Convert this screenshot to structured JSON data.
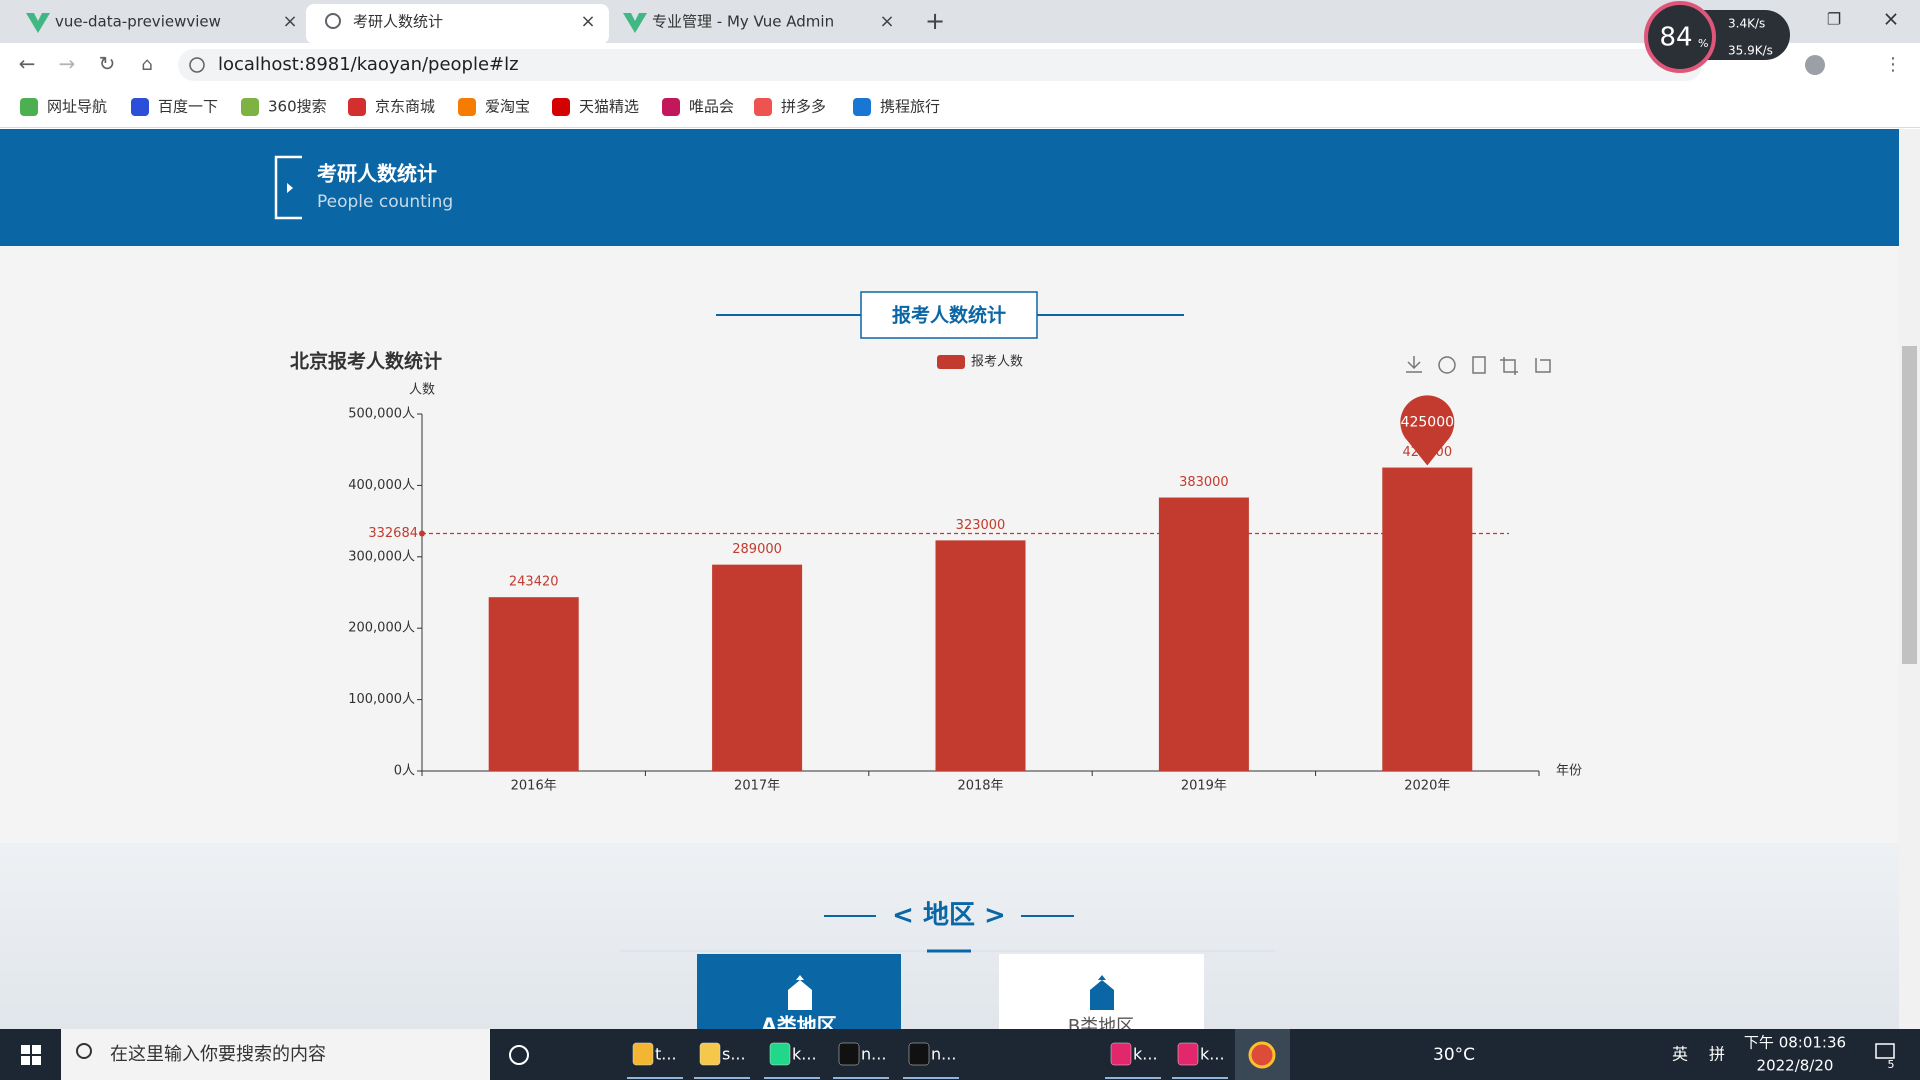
{
  "browser": {
    "tabs": [
      "vue-data-previewview",
      "考研人数统计",
      "专业管理 - My Vue Admin"
    ],
    "url": "localhost:8981/kaoyan/people#lz",
    "bookmarks": [
      "网址导航",
      "百度一下",
      "360搜索",
      "京东商城",
      "爱淘宝",
      "天猫精选",
      "唯品会",
      "拼多多",
      "携程旅行"
    ],
    "monitor": {
      "percent": "84",
      "unit": "%",
      "up": "3.4K/s",
      "down": "35.9K/s"
    }
  },
  "header": {
    "title": "考研人数统计",
    "subtitle": "People counting"
  },
  "section_title": "报考人数统计",
  "chart_data": {
    "type": "bar",
    "title": "北京报考人数统计",
    "y_axis_label": "人数",
    "x_axis_label": "年份",
    "categories": [
      "2016年",
      "2017年",
      "2018年",
      "2019年",
      "2020年"
    ],
    "series": [
      {
        "name": "报考人数",
        "color": "#c23b2e",
        "values": [
          243420,
          289000,
          323000,
          383000,
          425000
        ]
      }
    ],
    "average": 332684,
    "ylim": [
      0,
      500000
    ],
    "yticks": [
      {
        "value": 0,
        "label": "0人"
      },
      {
        "value": 100000,
        "label": "100,000人"
      },
      {
        "value": 200000,
        "label": "200,000人"
      },
      {
        "value": 300000,
        "label": "300,000人"
      },
      {
        "value": 400000,
        "label": "400,000人"
      },
      {
        "value": 500000,
        "label": "500,000人"
      }
    ],
    "grid": false,
    "legend": "top"
  },
  "region": {
    "title": "< 地区 >",
    "tabs": [
      "A类地区",
      "B类地区"
    ]
  },
  "taskbar": {
    "search": "在这里输入你要搜索的内容",
    "apps": [
      "t...",
      "s...",
      "k...",
      "n...",
      "n...",
      "k...",
      "k..."
    ],
    "weather": "30°C",
    "ime": "英",
    "ime_mode": "拼",
    "time": "下午 08:01:36",
    "date": "2022/8/20",
    "notifications": "5"
  }
}
